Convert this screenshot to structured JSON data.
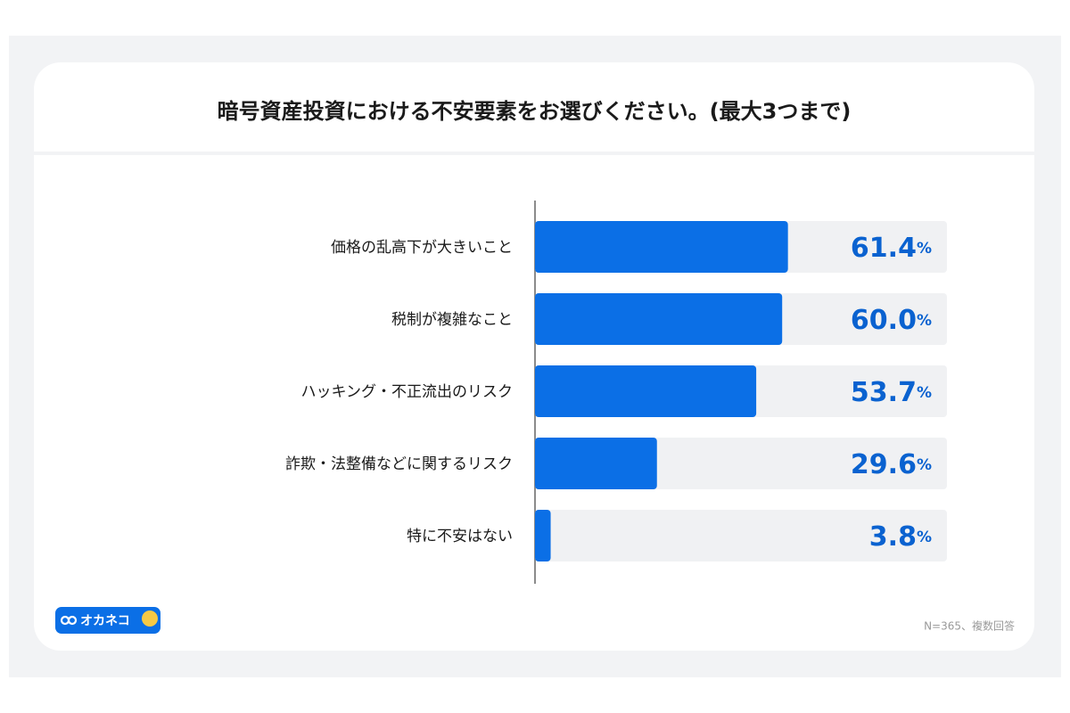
{
  "chart_data": {
    "type": "hbar",
    "title": "暗号資産投資における不安要素をお選びください。(最大3つまで)",
    "categories": [
      "価格の乱高下が大きいこと",
      "税制が複雑なこと",
      "ハッキング・不正流出のリスク",
      "詐欺・法整備などに関するリスク",
      "特に不安はない"
    ],
    "values": [
      61.4,
      60.0,
      53.7,
      29.6,
      3.8
    ],
    "value_labels": [
      "61.4%",
      "60.0%",
      "53.7%",
      "29.6%",
      "3.8%"
    ],
    "color": "#0b6fe6",
    "xlim": [
      0,
      100
    ],
    "note": "N=365、複数回答",
    "brand": "オカネコ"
  }
}
